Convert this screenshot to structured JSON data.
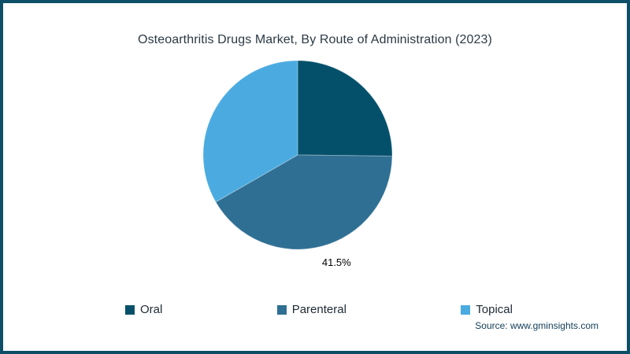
{
  "frame": {
    "border_color": "#0d4f66",
    "background": "#ffffff"
  },
  "title": "Osteoarthritis Drugs Market, By Route of Administration (2023)",
  "source": "Source: www.gminsights.com",
  "chart_data": {
    "type": "pie",
    "title": "Osteoarthritis Drugs Market, By Route of Administration (2023)",
    "start_angle_deg": 0,
    "direction": "clockwise",
    "legend_position": "bottom",
    "slices": [
      {
        "label": "Oral",
        "value": 25.2,
        "color": "#04506b",
        "data_label": ""
      },
      {
        "label": "Parenteral",
        "value": 41.5,
        "color": "#2f6f93",
        "data_label": "41.5%"
      },
      {
        "label": "Topical",
        "value": 33.3,
        "color": "#4babe0",
        "data_label": ""
      }
    ]
  }
}
